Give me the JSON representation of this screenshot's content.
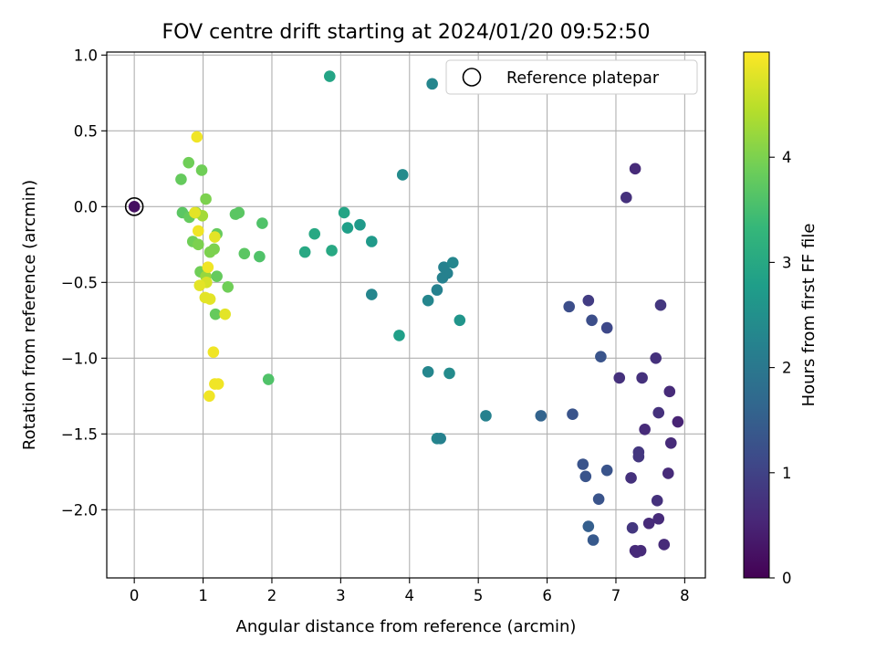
{
  "chart_data": {
    "type": "scatter",
    "title": "FOV centre drift starting at 2024/01/20 09:52:50",
    "xlabel": "Angular distance from reference (arcmin)",
    "ylabel": "Rotation from reference (arcmin)",
    "xlim": [
      -0.4,
      8.3
    ],
    "ylim": [
      -2.45,
      1.02
    ],
    "xticks": [
      0,
      1,
      2,
      3,
      4,
      5,
      6,
      7,
      8
    ],
    "xtick_labels": [
      "0",
      "1",
      "2",
      "3",
      "4",
      "5",
      "6",
      "7",
      "8"
    ],
    "yticks": [
      1.0,
      0.5,
      0.0,
      -0.5,
      -1.0,
      -1.5,
      -2.0
    ],
    "ytick_labels": [
      "1.0",
      "0.5",
      "0.0",
      "−0.5",
      "−1.0",
      "−1.5",
      "−2.0"
    ],
    "grid": true,
    "legend": {
      "placement": "top-right",
      "label": "Reference platepar",
      "marker": "open circle"
    },
    "reference_point": {
      "x": 0.0,
      "y": 0.0,
      "c": 0.2
    },
    "colorbar": {
      "label": "Hours from first FF file",
      "range": [
        0,
        5.0
      ],
      "ticks": [
        0,
        1,
        2,
        3,
        4
      ],
      "tick_labels": [
        "0",
        "1",
        "2",
        "3",
        "4"
      ],
      "colormap": "viridis",
      "stops": [
        "#440154",
        "#482878",
        "#3e4989",
        "#31688e",
        "#26828e",
        "#1f9e89",
        "#35b779",
        "#6ece58",
        "#b5de2b",
        "#fde725"
      ]
    },
    "points": [
      {
        "x": 7.28,
        "y": 0.25,
        "c": 0.6
      },
      {
        "x": 7.15,
        "y": 0.06,
        "c": 0.7
      },
      {
        "x": 7.65,
        "y": -0.65,
        "c": 0.8
      },
      {
        "x": 7.58,
        "y": -1.0,
        "c": 0.7
      },
      {
        "x": 7.05,
        "y": -1.13,
        "c": 0.7
      },
      {
        "x": 7.38,
        "y": -1.13,
        "c": 0.7
      },
      {
        "x": 7.78,
        "y": -1.22,
        "c": 0.6
      },
      {
        "x": 7.62,
        "y": -1.36,
        "c": 0.7
      },
      {
        "x": 7.9,
        "y": -1.42,
        "c": 0.5
      },
      {
        "x": 7.42,
        "y": -1.47,
        "c": 0.6
      },
      {
        "x": 7.8,
        "y": -1.56,
        "c": 0.6
      },
      {
        "x": 7.33,
        "y": -1.62,
        "c": 0.8
      },
      {
        "x": 7.33,
        "y": -1.65,
        "c": 0.8
      },
      {
        "x": 7.76,
        "y": -1.76,
        "c": 0.6
      },
      {
        "x": 7.22,
        "y": -1.79,
        "c": 0.7
      },
      {
        "x": 7.6,
        "y": -1.94,
        "c": 0.7
      },
      {
        "x": 7.62,
        "y": -2.06,
        "c": 0.6
      },
      {
        "x": 7.48,
        "y": -2.09,
        "c": 0.6
      },
      {
        "x": 7.24,
        "y": -2.12,
        "c": 0.8
      },
      {
        "x": 7.7,
        "y": -2.23,
        "c": 0.6
      },
      {
        "x": 7.28,
        "y": -2.27,
        "c": 0.6
      },
      {
        "x": 7.36,
        "y": -2.27,
        "c": 0.6
      },
      {
        "x": 7.3,
        "y": -2.28,
        "c": 0.6
      },
      {
        "x": 6.6,
        "y": -0.62,
        "c": 0.9
      },
      {
        "x": 6.32,
        "y": -0.66,
        "c": 1.2
      },
      {
        "x": 6.65,
        "y": -0.75,
        "c": 1.2
      },
      {
        "x": 6.87,
        "y": -0.8,
        "c": 1.1
      },
      {
        "x": 6.78,
        "y": -0.99,
        "c": 1.3
      },
      {
        "x": 6.37,
        "y": -1.37,
        "c": 1.3
      },
      {
        "x": 6.52,
        "y": -1.7,
        "c": 1.3
      },
      {
        "x": 6.56,
        "y": -1.78,
        "c": 1.3
      },
      {
        "x": 6.87,
        "y": -1.74,
        "c": 1.3
      },
      {
        "x": 6.75,
        "y": -1.93,
        "c": 1.3
      },
      {
        "x": 6.6,
        "y": -2.11,
        "c": 1.5
      },
      {
        "x": 6.67,
        "y": -2.2,
        "c": 1.4
      },
      {
        "x": 5.91,
        "y": -1.38,
        "c": 1.6
      },
      {
        "x": 5.11,
        "y": -1.38,
        "c": 2.2
      },
      {
        "x": 4.33,
        "y": 0.81,
        "c": 2.3
      },
      {
        "x": 3.9,
        "y": 0.21,
        "c": 2.4
      },
      {
        "x": 4.5,
        "y": -0.4,
        "c": 2.2
      },
      {
        "x": 4.63,
        "y": -0.37,
        "c": 2.3
      },
      {
        "x": 4.55,
        "y": -0.44,
        "c": 2.2
      },
      {
        "x": 4.48,
        "y": -0.47,
        "c": 2.2
      },
      {
        "x": 4.4,
        "y": -0.55,
        "c": 2.2
      },
      {
        "x": 4.27,
        "y": -0.62,
        "c": 2.3
      },
      {
        "x": 4.73,
        "y": -0.75,
        "c": 2.6
      },
      {
        "x": 3.45,
        "y": -0.58,
        "c": 2.3
      },
      {
        "x": 4.27,
        "y": -1.09,
        "c": 2.3
      },
      {
        "x": 4.58,
        "y": -1.1,
        "c": 2.4
      },
      {
        "x": 4.4,
        "y": -1.53,
        "c": 2.3
      },
      {
        "x": 4.45,
        "y": -1.53,
        "c": 2.2
      },
      {
        "x": 3.85,
        "y": -0.85,
        "c": 2.8
      },
      {
        "x": 2.84,
        "y": 0.86,
        "c": 2.9
      },
      {
        "x": 3.05,
        "y": -0.04,
        "c": 2.9
      },
      {
        "x": 3.1,
        "y": -0.14,
        "c": 2.8
      },
      {
        "x": 3.28,
        "y": -0.12,
        "c": 2.7
      },
      {
        "x": 3.45,
        "y": -0.23,
        "c": 2.7
      },
      {
        "x": 2.62,
        "y": -0.18,
        "c": 3.0
      },
      {
        "x": 2.48,
        "y": -0.3,
        "c": 3.0
      },
      {
        "x": 2.87,
        "y": -0.29,
        "c": 3.0
      },
      {
        "x": 0.68,
        "y": 0.18,
        "c": 3.8
      },
      {
        "x": 0.79,
        "y": 0.29,
        "c": 3.9
      },
      {
        "x": 0.98,
        "y": 0.24,
        "c": 3.9
      },
      {
        "x": 1.04,
        "y": 0.05,
        "c": 4.0
      },
      {
        "x": 0.7,
        "y": -0.04,
        "c": 3.7
      },
      {
        "x": 0.8,
        "y": -0.07,
        "c": 3.8
      },
      {
        "x": 0.9,
        "y": -0.04,
        "c": 4.1
      },
      {
        "x": 0.99,
        "y": -0.06,
        "c": 4.3
      },
      {
        "x": 1.47,
        "y": -0.05,
        "c": 3.7
      },
      {
        "x": 1.52,
        "y": -0.04,
        "c": 3.7
      },
      {
        "x": 1.86,
        "y": -0.11,
        "c": 3.6
      },
      {
        "x": 1.2,
        "y": -0.18,
        "c": 3.8
      },
      {
        "x": 0.85,
        "y": -0.23,
        "c": 3.9
      },
      {
        "x": 0.93,
        "y": -0.25,
        "c": 4.0
      },
      {
        "x": 1.1,
        "y": -0.3,
        "c": 4.0
      },
      {
        "x": 1.16,
        "y": -0.28,
        "c": 4.0
      },
      {
        "x": 1.6,
        "y": -0.31,
        "c": 3.7
      },
      {
        "x": 1.82,
        "y": -0.33,
        "c": 3.6
      },
      {
        "x": 0.96,
        "y": -0.43,
        "c": 3.9
      },
      {
        "x": 1.04,
        "y": -0.46,
        "c": 4.2
      },
      {
        "x": 1.2,
        "y": -0.46,
        "c": 3.8
      },
      {
        "x": 1.36,
        "y": -0.53,
        "c": 3.9
      },
      {
        "x": 1.18,
        "y": -0.71,
        "c": 3.8
      },
      {
        "x": 1.95,
        "y": -1.14,
        "c": 3.6
      },
      {
        "x": 0.91,
        "y": 0.46,
        "c": 4.9
      },
      {
        "x": 0.88,
        "y": -0.04,
        "c": 4.8
      },
      {
        "x": 0.93,
        "y": -0.16,
        "c": 4.9
      },
      {
        "x": 1.17,
        "y": -0.2,
        "c": 4.8
      },
      {
        "x": 1.07,
        "y": -0.4,
        "c": 4.9
      },
      {
        "x": 1.05,
        "y": -0.5,
        "c": 4.7
      },
      {
        "x": 0.95,
        "y": -0.52,
        "c": 4.8
      },
      {
        "x": 1.03,
        "y": -0.6,
        "c": 4.8
      },
      {
        "x": 1.1,
        "y": -0.61,
        "c": 4.8
      },
      {
        "x": 1.32,
        "y": -0.71,
        "c": 4.8
      },
      {
        "x": 1.15,
        "y": -0.96,
        "c": 4.9
      },
      {
        "x": 1.17,
        "y": -1.17,
        "c": 4.9
      },
      {
        "x": 1.22,
        "y": -1.17,
        "c": 4.9
      },
      {
        "x": 1.09,
        "y": -1.25,
        "c": 4.9
      }
    ]
  }
}
